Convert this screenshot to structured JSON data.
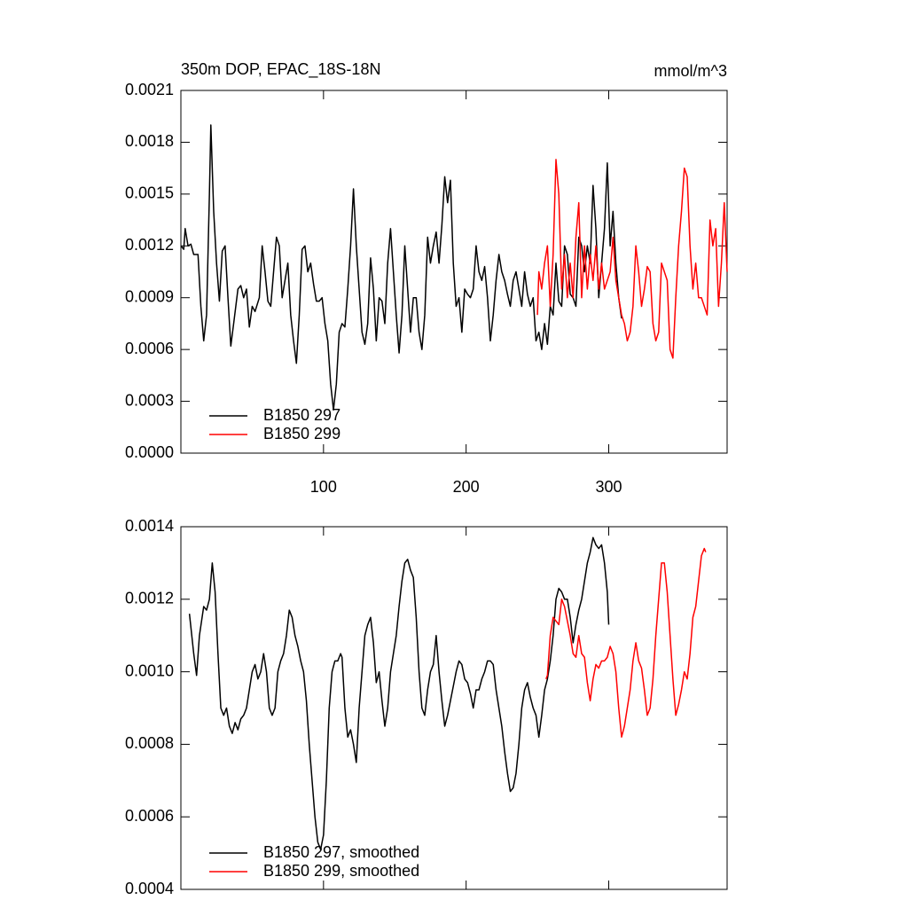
{
  "chart_data": [
    {
      "type": "line",
      "title": "350m DOP, EPAC_18S-18N",
      "units": "mmol/m^3",
      "xlim": [
        0,
        383
      ],
      "xticks": [
        100,
        200,
        300
      ],
      "ylim": [
        0,
        0.0021
      ],
      "yticks": [
        {
          "value": 0,
          "label": "0.0000"
        },
        0.0003,
        0.0006,
        0.0009,
        0.0012,
        0.0015,
        0.0018,
        0.0021
      ],
      "legend": "lower left",
      "series": [
        {
          "name": "B1850 297",
          "color": "#000000",
          "x": [
            0,
            2,
            3,
            5,
            7,
            9,
            12,
            14,
            16,
            18,
            20,
            21,
            23,
            25,
            27,
            29,
            31,
            33,
            35,
            37,
            40,
            42,
            44,
            46,
            48,
            50,
            52,
            55,
            57,
            59,
            61,
            63,
            65,
            67,
            69,
            71,
            73,
            75,
            77,
            79,
            81,
            83,
            85,
            87,
            89,
            91,
            93,
            95,
            97,
            99,
            101,
            103,
            105,
            107,
            109,
            111,
            113,
            115,
            117,
            119,
            121,
            123,
            125,
            127,
            129,
            131,
            133,
            135,
            137,
            139,
            141,
            143,
            145,
            147,
            149,
            151,
            153,
            155,
            157,
            159,
            161,
            163,
            165,
            167,
            169,
            171,
            173,
            175,
            177,
            179,
            181,
            183,
            185,
            187,
            189,
            191,
            193,
            195,
            197,
            199,
            201,
            203,
            205,
            207,
            209,
            211,
            213,
            215,
            217,
            219,
            221,
            223,
            225,
            227,
            229,
            231,
            233,
            235,
            237,
            239,
            241,
            243,
            245,
            247,
            249,
            251,
            253,
            255,
            257,
            259,
            261,
            263,
            265,
            267,
            269,
            271,
            273,
            275,
            277,
            279,
            281,
            283,
            285,
            287,
            289,
            291,
            293,
            295,
            297,
            299,
            301,
            303,
            305,
            307,
            309
          ],
          "values": [
            0.0012,
            0.00118,
            0.0013,
            0.0012,
            0.00121,
            0.00115,
            0.00115,
            0.00085,
            0.00065,
            0.0008,
            0.0015,
            0.0019,
            0.0014,
            0.0011,
            0.00088,
            0.00117,
            0.0012,
            0.0009,
            0.00062,
            0.00075,
            0.00095,
            0.00097,
            0.0009,
            0.00095,
            0.00073,
            0.00085,
            0.00082,
            0.0009,
            0.0012,
            0.00105,
            0.00088,
            0.00085,
            0.00105,
            0.00125,
            0.0012,
            0.0009,
            0.001,
            0.0011,
            0.0008,
            0.00065,
            0.00052,
            0.0008,
            0.00118,
            0.0012,
            0.00105,
            0.0011,
            0.00098,
            0.00088,
            0.00088,
            0.0009,
            0.00075,
            0.00065,
            0.0004,
            0.00025,
            0.0004,
            0.0007,
            0.00075,
            0.00073,
            0.00095,
            0.0012,
            0.00153,
            0.0012,
            0.00095,
            0.0007,
            0.00063,
            0.00075,
            0.00113,
            0.00095,
            0.00065,
            0.0009,
            0.00088,
            0.00075,
            0.0011,
            0.0013,
            0.00105,
            0.0008,
            0.00058,
            0.0008,
            0.0012,
            0.00095,
            0.0007,
            0.0009,
            0.0009,
            0.0007,
            0.0006,
            0.0008,
            0.00125,
            0.0011,
            0.0012,
            0.00128,
            0.0011,
            0.00132,
            0.0016,
            0.00145,
            0.00158,
            0.0011,
            0.00085,
            0.0009,
            0.0007,
            0.00095,
            0.00092,
            0.0009,
            0.00095,
            0.0012,
            0.00105,
            0.001,
            0.00108,
            0.0009,
            0.00065,
            0.0008,
            0.001,
            0.00115,
            0.00105,
            0.001,
            0.00092,
            0.00085,
            0.001,
            0.00105,
            0.00095,
            0.00085,
            0.00105,
            0.00092,
            0.00085,
            0.0009,
            0.00065,
            0.0007,
            0.0006,
            0.00075,
            0.00063,
            0.00085,
            0.0008,
            0.0011,
            0.00088,
            0.00085,
            0.0012,
            0.00115,
            0.00092,
            0.0009,
            0.00085,
            0.00125,
            0.0012,
            0.00105,
            0.0012,
            0.0011,
            0.00155,
            0.0013,
            0.0009,
            0.0011,
            0.0013,
            0.00168,
            0.0012,
            0.0014,
            0.0011,
            0.0009,
            0.00078
          ]
        },
        {
          "name": "B1850 299",
          "color": "#ff0000",
          "x": [
            250,
            251,
            253,
            255,
            257,
            259,
            261,
            263,
            265,
            267,
            269,
            271,
            273,
            275,
            277,
            279,
            281,
            283,
            285,
            287,
            289,
            291,
            293,
            295,
            297,
            299,
            301,
            303,
            305,
            307,
            309,
            311,
            313,
            315,
            317,
            319,
            321,
            323,
            325,
            327,
            329,
            331,
            333,
            335,
            337,
            339,
            341,
            343,
            345,
            347,
            349,
            351,
            353,
            355,
            357,
            359,
            361,
            363,
            365,
            367,
            369,
            371,
            373,
            375,
            377,
            379,
            381,
            383
          ],
          "values": [
            0.0008,
            0.00105,
            0.00095,
            0.0011,
            0.0012,
            0.00085,
            0.00115,
            0.0017,
            0.0015,
            0.00095,
            0.00115,
            0.0009,
            0.0011,
            0.0009,
            0.00125,
            0.00145,
            0.0009,
            0.0012,
            0.00095,
            0.00115,
            0.001,
            0.0012,
            0.00095,
            0.0011,
            0.00095,
            0.001,
            0.00105,
            0.00125,
            0.001,
            0.0009,
            0.0008,
            0.00075,
            0.00065,
            0.0007,
            0.00085,
            0.0012,
            0.00105,
            0.00085,
            0.00095,
            0.00108,
            0.00105,
            0.00075,
            0.00065,
            0.0007,
            0.0011,
            0.00105,
            0.001,
            0.0006,
            0.00055,
            0.0009,
            0.0012,
            0.0014,
            0.00165,
            0.0016,
            0.0012,
            0.00095,
            0.0011,
            0.0009,
            0.0009,
            0.00085,
            0.0008,
            0.00135,
            0.0012,
            0.0013,
            0.00085,
            0.0011,
            0.00145,
            0.00105
          ]
        }
      ]
    },
    {
      "type": "line",
      "xlim": [
        0,
        383
      ],
      "ylim": [
        0.0004,
        0.0014
      ],
      "yticks": [
        0.0004,
        0.0006,
        0.0008,
        {
          "value": 0.001,
          "label": "0.0010"
        },
        0.0012,
        0.0014
      ],
      "legend": "lower left",
      "series": [
        {
          "name": "B1850 297, smoothed",
          "color": "#000000",
          "x": [
            6,
            9,
            11,
            13,
            16,
            18,
            20,
            22,
            24,
            26,
            28,
            30,
            32,
            34,
            36,
            38,
            40,
            42,
            44,
            46,
            48,
            50,
            52,
            54,
            56,
            58,
            60,
            62,
            64,
            66,
            68,
            70,
            72,
            74,
            76,
            78,
            80,
            82,
            84,
            86,
            88,
            90,
            92,
            94,
            96,
            98,
            100,
            102,
            104,
            106,
            108,
            110,
            112,
            113,
            115,
            117,
            119,
            121,
            123,
            125,
            127,
            129,
            131,
            133,
            135,
            137,
            139,
            141,
            143,
            145,
            147,
            149,
            151,
            153,
            155,
            157,
            159,
            161,
            163,
            165,
            167,
            169,
            171,
            173,
            175,
            177,
            179,
            181,
            183,
            185,
            187,
            189,
            191,
            193,
            195,
            197,
            199,
            201,
            203,
            205,
            207,
            209,
            211,
            213,
            215,
            217,
            219,
            221,
            223,
            225,
            227,
            229,
            231,
            233,
            235,
            237,
            239,
            241,
            243,
            245,
            247,
            249,
            251,
            253,
            255,
            257,
            259,
            261,
            263,
            265,
            267,
            269,
            271,
            273,
            275,
            277,
            279,
            281,
            283,
            285,
            287,
            289,
            291,
            293,
            295,
            297,
            299,
            300
          ],
          "values": [
            0.00116,
            0.00105,
            0.00099,
            0.0011,
            0.00118,
            0.00117,
            0.0012,
            0.0013,
            0.00122,
            0.00105,
            0.0009,
            0.00088,
            0.0009,
            0.00085,
            0.00083,
            0.00086,
            0.00084,
            0.00087,
            0.00088,
            0.0009,
            0.00095,
            0.001,
            0.00102,
            0.00098,
            0.001,
            0.00105,
            0.001,
            0.0009,
            0.00088,
            0.0009,
            0.001,
            0.00103,
            0.00105,
            0.0011,
            0.00117,
            0.00115,
            0.0011,
            0.00107,
            0.00103,
            0.001,
            0.00092,
            0.0008,
            0.0007,
            0.0006,
            0.00053,
            0.00051,
            0.00055,
            0.0007,
            0.0009,
            0.001,
            0.00103,
            0.00103,
            0.00105,
            0.00104,
            0.0009,
            0.00082,
            0.00084,
            0.0008,
            0.00075,
            0.0009,
            0.001,
            0.0011,
            0.00113,
            0.00115,
            0.00108,
            0.00097,
            0.001,
            0.00092,
            0.00085,
            0.0009,
            0.001,
            0.00105,
            0.0011,
            0.00118,
            0.00125,
            0.0013,
            0.00131,
            0.00128,
            0.00126,
            0.00115,
            0.001,
            0.0009,
            0.00088,
            0.00095,
            0.001,
            0.00102,
            0.0011,
            0.001,
            0.00092,
            0.00085,
            0.00088,
            0.00092,
            0.00096,
            0.001,
            0.00103,
            0.00102,
            0.00098,
            0.00097,
            0.00094,
            0.0009,
            0.00095,
            0.00095,
            0.00098,
            0.001,
            0.00103,
            0.00103,
            0.00102,
            0.00095,
            0.0009,
            0.00085,
            0.00078,
            0.00072,
            0.00067,
            0.00068,
            0.00072,
            0.0008,
            0.0009,
            0.00095,
            0.00097,
            0.00093,
            0.0009,
            0.00088,
            0.00082,
            0.00088,
            0.00095,
            0.00098,
            0.00103,
            0.0011,
            0.0012,
            0.00123,
            0.00122,
            0.0012,
            0.0012,
            0.00115,
            0.00108,
            0.00113,
            0.00117,
            0.0012,
            0.00125,
            0.0013,
            0.00133,
            0.00137,
            0.00135,
            0.00134,
            0.00135,
            0.0013,
            0.00122,
            0.00113
          ]
        },
        {
          "name": "B1850 299, smoothed",
          "color": "#ff0000",
          "x": [
            256,
            257,
            259,
            261,
            263,
            265,
            267,
            269,
            271,
            273,
            275,
            277,
            279,
            281,
            283,
            285,
            287,
            289,
            291,
            293,
            295,
            297,
            299,
            301,
            303,
            305,
            307,
            309,
            311,
            313,
            315,
            317,
            319,
            321,
            323,
            325,
            327,
            329,
            331,
            333,
            335,
            337,
            339,
            341,
            343,
            345,
            347,
            349,
            351,
            353,
            355,
            357,
            359,
            361,
            363,
            365,
            367,
            368
          ],
          "values": [
            0.00098,
            0.00099,
            0.0011,
            0.00115,
            0.00114,
            0.00113,
            0.0012,
            0.00118,
            0.00114,
            0.0011,
            0.00105,
            0.00104,
            0.0011,
            0.00105,
            0.00104,
            0.00097,
            0.00092,
            0.00098,
            0.00102,
            0.00101,
            0.00103,
            0.00103,
            0.00104,
            0.00107,
            0.00105,
            0.001,
            0.0009,
            0.00082,
            0.00085,
            0.0009,
            0.00095,
            0.00103,
            0.00108,
            0.00103,
            0.00101,
            0.00095,
            0.00088,
            0.0009,
            0.00098,
            0.0011,
            0.0012,
            0.0013,
            0.0013,
            0.00122,
            0.0011,
            0.00098,
            0.00088,
            0.00091,
            0.00095,
            0.001,
            0.00098,
            0.00105,
            0.00115,
            0.00118,
            0.00125,
            0.00132,
            0.00134,
            0.00133
          ]
        }
      ]
    }
  ]
}
